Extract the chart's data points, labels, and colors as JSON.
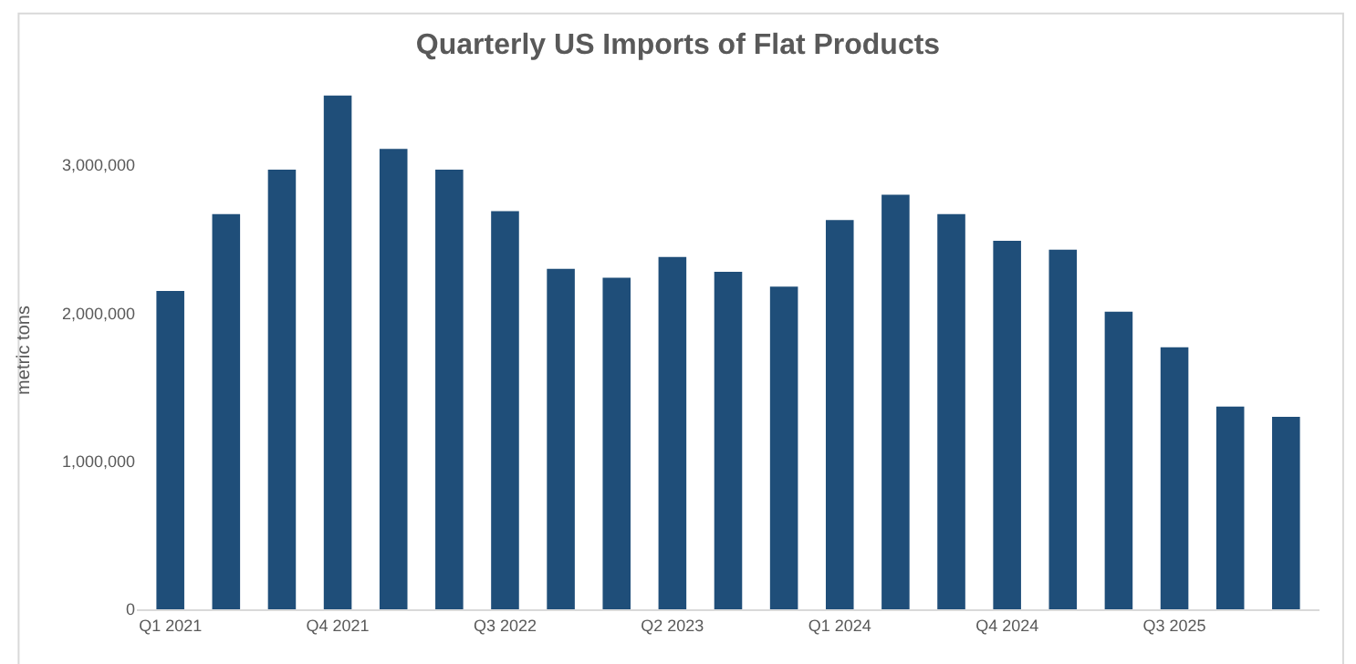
{
  "chart_data": {
    "type": "bar",
    "title": "Quarterly US Imports of Flat Products",
    "ylabel": "metric tons",
    "categories": [
      "Q1 2021",
      null,
      null,
      "Q4 2021",
      null,
      null,
      "Q3 2022",
      null,
      null,
      "Q2 2023",
      null,
      null,
      "Q1 2024",
      null,
      null,
      "Q4 2024",
      null,
      null,
      "Q3 2025",
      null,
      null
    ],
    "values": [
      2150000,
      2670000,
      2970000,
      3470000,
      3110000,
      2970000,
      2690000,
      2300000,
      2240000,
      2380000,
      2280000,
      2180000,
      2630000,
      2800000,
      2670000,
      2490000,
      2430000,
      2010000,
      1770000,
      1370000,
      1300000
    ],
    "color": "#1f4e79",
    "ylim": [
      0,
      3500000
    ],
    "yticks": [
      {
        "value": 0,
        "label": "0"
      },
      {
        "value": 1000000,
        "label": "1,000,000"
      },
      {
        "value": 2000000,
        "label": "2,000,000"
      },
      {
        "value": 3000000,
        "label": "3,000,000"
      }
    ]
  }
}
